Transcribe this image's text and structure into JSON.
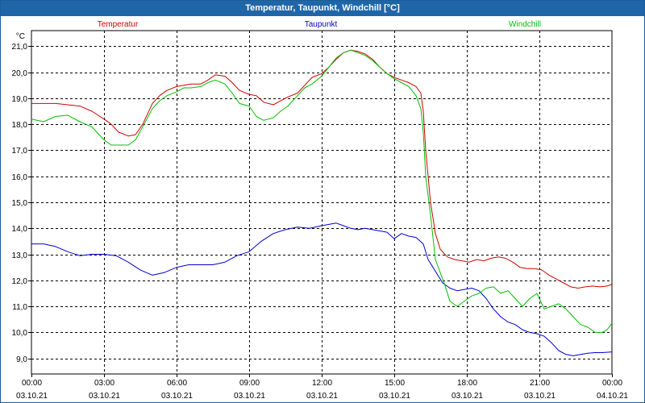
{
  "window": {
    "title": "Temperatur, Taupunkt, Windchill [°C]"
  },
  "chart_data": {
    "type": "line",
    "title": "Temperatur, Taupunkt, Windchill [°C]",
    "ylabel": "°C",
    "ylim": [
      8.4,
      21.6
    ],
    "yticks": [
      9.0,
      10.0,
      11.0,
      12.0,
      13.0,
      14.0,
      15.0,
      16.0,
      17.0,
      18.0,
      19.0,
      20.0,
      21.0
    ],
    "ytick_labels": [
      "9,0",
      "10,0",
      "11,0",
      "12,0",
      "13,0",
      "14,0",
      "15,0",
      "16,0",
      "17,0",
      "18,0",
      "19,0",
      "20,0",
      "21,0"
    ],
    "xlim_hours": [
      0,
      24
    ],
    "xticks": [
      {
        "h": 0,
        "time": "00:00",
        "date": "03.10.21"
      },
      {
        "h": 3,
        "time": "03:00",
        "date": "03.10.21"
      },
      {
        "h": 6,
        "time": "06:00",
        "date": "03.10.21"
      },
      {
        "h": 9,
        "time": "09:00",
        "date": "03.10.21"
      },
      {
        "h": 12,
        "time": "12:00",
        "date": "03.10.21"
      },
      {
        "h": 15,
        "time": "15:00",
        "date": "03.10.21"
      },
      {
        "h": 18,
        "time": "18:00",
        "date": "03.10.21"
      },
      {
        "h": 21,
        "time": "21:00",
        "date": "03.10.21"
      },
      {
        "h": 24,
        "time": "00:00",
        "date": "04.10.21"
      }
    ],
    "grid": true,
    "series": [
      {
        "name": "Temperatur",
        "color": "#d40000",
        "x": [
          0,
          0.5,
          1,
          1.5,
          2,
          2.5,
          3,
          3.3,
          3.6,
          4,
          4.3,
          4.6,
          5,
          5.3,
          5.6,
          6,
          6.3,
          6.6,
          7,
          7.3,
          7.6,
          8,
          8.3,
          8.6,
          9,
          9.3,
          9.6,
          10,
          10.3,
          10.6,
          11,
          11.3,
          11.6,
          12,
          12.3,
          12.6,
          12.9,
          13.2,
          13.5,
          13.8,
          14.1,
          14.4,
          14.7,
          15,
          15.3,
          15.6,
          15.9,
          16.1,
          16.2,
          16.3,
          16.5,
          16.7,
          16.9,
          17.2,
          17.5,
          17.8,
          18.1,
          18.4,
          18.7,
          19,
          19.3,
          19.6,
          19.9,
          20.2,
          20.5,
          20.8,
          21.1,
          21.4,
          21.7,
          22,
          22.3,
          22.6,
          22.9,
          23.2,
          23.5,
          23.8,
          24
        ],
        "y": [
          18.8,
          18.8,
          18.8,
          18.75,
          18.7,
          18.5,
          18.2,
          18.0,
          17.7,
          17.55,
          17.6,
          18.0,
          18.8,
          19.1,
          19.3,
          19.45,
          19.5,
          19.55,
          19.55,
          19.7,
          19.9,
          19.85,
          19.6,
          19.3,
          19.15,
          19.1,
          18.85,
          18.75,
          18.9,
          19.05,
          19.2,
          19.5,
          19.8,
          19.95,
          20.2,
          20.5,
          20.75,
          20.85,
          20.8,
          20.7,
          20.5,
          20.2,
          19.95,
          19.8,
          19.7,
          19.6,
          19.45,
          19.2,
          18.5,
          17.0,
          15.0,
          13.8,
          13.2,
          12.9,
          12.8,
          12.75,
          12.7,
          12.8,
          12.75,
          12.85,
          12.9,
          12.85,
          12.7,
          12.5,
          12.45,
          12.45,
          12.4,
          12.2,
          12.05,
          11.9,
          11.75,
          11.7,
          11.75,
          11.78,
          11.75,
          11.78,
          11.85
        ]
      },
      {
        "name": "Taupunkt",
        "color": "#0000d0",
        "x": [
          0,
          0.5,
          1,
          1.5,
          2,
          2.5,
          3,
          3.5,
          4,
          4.5,
          5,
          5.5,
          6,
          6.5,
          7,
          7.5,
          8,
          8.5,
          9,
          9.5,
          10,
          10.5,
          11,
          11.5,
          12,
          12.3,
          12.6,
          12.9,
          13.2,
          13.5,
          13.8,
          14.1,
          14.4,
          14.7,
          15,
          15.3,
          15.6,
          15.9,
          16.2,
          16.4,
          16.6,
          16.8,
          17,
          17.3,
          17.6,
          17.9,
          18.2,
          18.5,
          18.8,
          19.1,
          19.4,
          19.7,
          20,
          20.3,
          20.6,
          20.9,
          21.2,
          21.5,
          21.8,
          22.1,
          22.4,
          22.7,
          23,
          23.3,
          23.6,
          24
        ],
        "y": [
          13.4,
          13.4,
          13.3,
          13.1,
          12.95,
          13.0,
          13.0,
          12.95,
          12.7,
          12.4,
          12.2,
          12.3,
          12.5,
          12.6,
          12.6,
          12.6,
          12.7,
          12.95,
          13.1,
          13.5,
          13.8,
          13.95,
          14.05,
          14.0,
          14.1,
          14.15,
          14.2,
          14.1,
          14.0,
          13.95,
          14.0,
          13.95,
          13.9,
          13.85,
          13.6,
          13.8,
          13.7,
          13.65,
          13.4,
          12.8,
          12.5,
          12.2,
          11.9,
          11.7,
          11.6,
          11.65,
          11.7,
          11.6,
          11.3,
          10.9,
          10.6,
          10.4,
          10.3,
          10.1,
          10.0,
          9.95,
          9.85,
          9.6,
          9.3,
          9.15,
          9.1,
          9.15,
          9.2,
          9.22,
          9.22,
          9.25
        ]
      },
      {
        "name": "Windchill",
        "color": "#00c000",
        "x": [
          0,
          0.5,
          1,
          1.5,
          2,
          2.5,
          2.8,
          3,
          3.3,
          3.6,
          4,
          4.3,
          4.6,
          5,
          5.3,
          5.6,
          6,
          6.3,
          6.6,
          7,
          7.3,
          7.6,
          8,
          8.3,
          8.6,
          9,
          9.3,
          9.6,
          10,
          10.3,
          10.6,
          11,
          11.3,
          11.6,
          12,
          12.3,
          12.6,
          12.9,
          13.2,
          13.5,
          13.8,
          14.1,
          14.4,
          14.7,
          15,
          15.3,
          15.6,
          15.9,
          16.1,
          16.2,
          16.3,
          16.5,
          16.7,
          16.9,
          17.1,
          17.3,
          17.6,
          17.9,
          18.2,
          18.5,
          18.8,
          19.1,
          19.4,
          19.7,
          20,
          20.3,
          20.6,
          20.9,
          21.2,
          21.5,
          21.8,
          22.1,
          22.4,
          22.7,
          23,
          23.3,
          23.6,
          23.8,
          24
        ],
        "y": [
          18.2,
          18.1,
          18.3,
          18.35,
          18.1,
          17.9,
          17.6,
          17.4,
          17.2,
          17.2,
          17.2,
          17.4,
          17.9,
          18.6,
          18.9,
          19.1,
          19.25,
          19.4,
          19.4,
          19.45,
          19.6,
          19.7,
          19.55,
          19.2,
          18.8,
          18.7,
          18.3,
          18.15,
          18.25,
          18.5,
          18.7,
          19.1,
          19.4,
          19.55,
          19.85,
          20.2,
          20.55,
          20.75,
          20.85,
          20.75,
          20.65,
          20.45,
          20.2,
          19.95,
          19.75,
          19.6,
          19.45,
          19.1,
          18.6,
          17.7,
          16.0,
          14.5,
          12.8,
          12.3,
          11.8,
          11.2,
          11.0,
          11.2,
          11.4,
          11.5,
          11.7,
          11.75,
          11.5,
          11.6,
          11.3,
          11.0,
          11.3,
          11.5,
          10.9,
          11.0,
          11.1,
          10.9,
          10.6,
          10.3,
          10.2,
          10.0,
          10.0,
          10.1,
          10.35
        ]
      }
    ]
  }
}
